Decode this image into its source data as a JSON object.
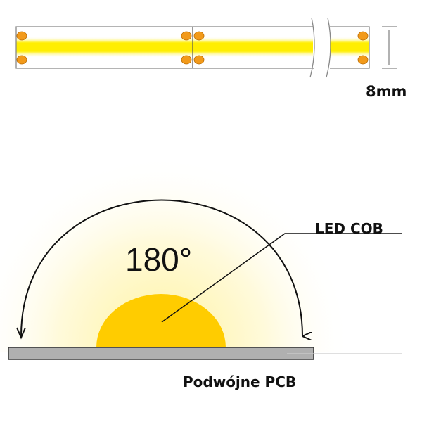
{
  "strip": {
    "width_label": "8mm",
    "colors": {
      "pad": "#f29a1a",
      "light_line": "#ffee00",
      "outline": "#777777"
    }
  },
  "cross_section": {
    "angle_label": "180°",
    "led_label": "LED COB",
    "pcb_label": "Podwójne PCB",
    "colors": {
      "led": "#ffcc00",
      "glow": "#fff7c0",
      "pcb": "#b0b0b0"
    }
  }
}
